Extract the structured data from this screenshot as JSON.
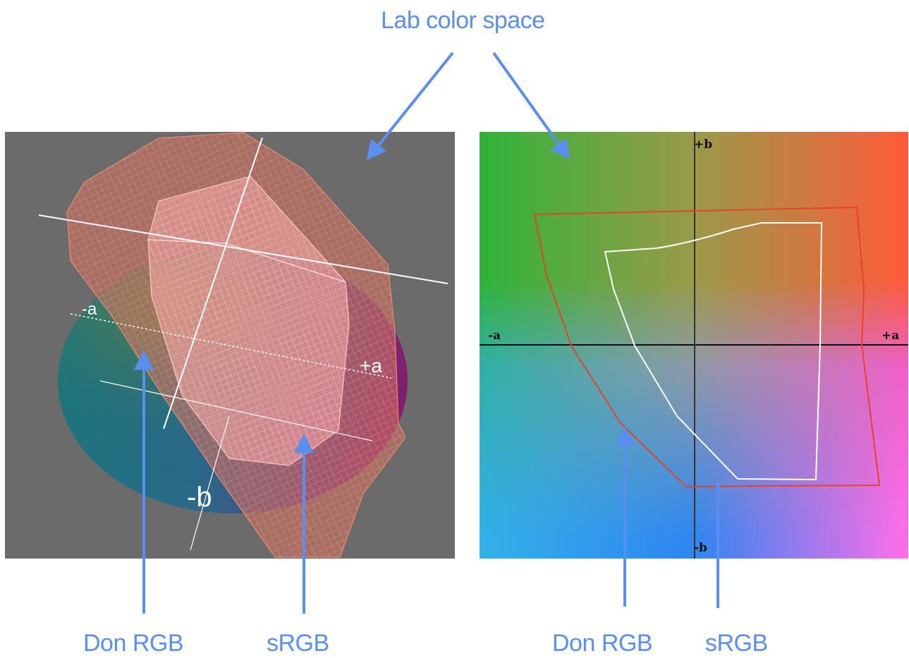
{
  "title": "Lab color space",
  "left_panel": {
    "axis_labels": {
      "neg_a": "-a",
      "pos_a": "+a",
      "neg_b": "-b"
    },
    "callouts": {
      "don_rgb": "Don RGB",
      "srgb": "sRGB"
    }
  },
  "right_panel": {
    "axis_labels": {
      "neg_a": "-a",
      "pos_a": "+a",
      "pos_b": "+b",
      "neg_b": "-b"
    },
    "callouts": {
      "don_rgb": "Don RGB",
      "srgb": "sRGB"
    }
  },
  "colors": {
    "callout_text": "#5a8ef0",
    "arrow": "#5a8ef0",
    "panel_bg": "#6b6b6b",
    "don_rgb_outline": "#e5432c",
    "srgb_outline": "#ffffff"
  }
}
